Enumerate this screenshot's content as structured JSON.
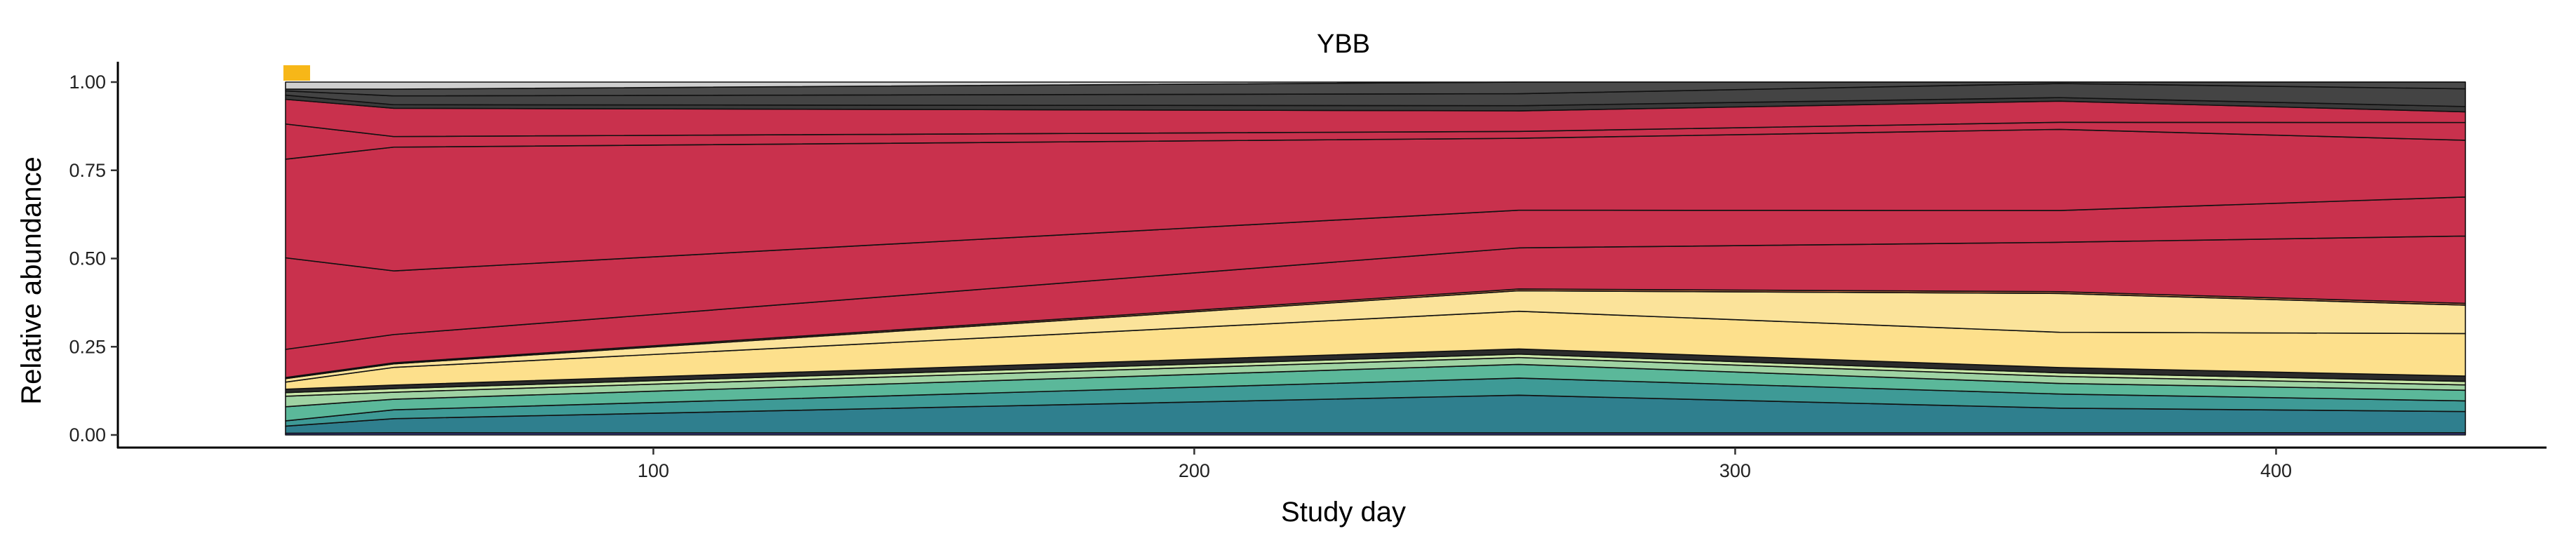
{
  "chart_data": {
    "type": "area",
    "stacked": true,
    "normalized": true,
    "title": "YBB",
    "xlabel": "Study day",
    "ylabel": "Relative abundance",
    "xlim": [
      1,
      450
    ],
    "ylim": [
      0,
      1.0
    ],
    "x_ticks": [
      100,
      200,
      300,
      400
    ],
    "y_ticks": [
      "0.00",
      "0.25",
      "0.50",
      "0.75",
      "1.00"
    ],
    "grid": false,
    "legend": "none",
    "x": [
      32,
      52,
      260,
      360,
      435
    ],
    "series": [
      {
        "color": "#3a3f8f",
        "values": [
          0.005,
          0.006,
          0.006,
          0.006,
          0.006
        ]
      },
      {
        "color": "#2f7f8e",
        "values": [
          0.02,
          0.04,
          0.11,
          0.07,
          0.06
        ]
      },
      {
        "color": "#3e9a96",
        "values": [
          0.015,
          0.025,
          0.05,
          0.04,
          0.03
        ]
      },
      {
        "color": "#5bb89a",
        "values": [
          0.04,
          0.03,
          0.04,
          0.03,
          0.03
        ]
      },
      {
        "color": "#9fd3a3",
        "values": [
          0.03,
          0.02,
          0.02,
          0.02,
          0.015
        ]
      },
      {
        "color": "#c9e7a8",
        "values": [
          0.01,
          0.01,
          0.01,
          0.01,
          0.01
        ]
      },
      {
        "color": "#2b2b2b",
        "values": [
          0.01,
          0.01,
          0.015,
          0.015,
          0.015
        ]
      },
      {
        "color": "#fde08c",
        "values": [
          0.02,
          0.05,
          0.11,
          0.1,
          0.12
        ]
      },
      {
        "color": "#fbe39a",
        "values": [
          0.01,
          0.01,
          0.06,
          0.11,
          0.08
        ]
      },
      {
        "color": "#e07b4a",
        "values": [
          0.003,
          0.003,
          0.005,
          0.005,
          0.005
        ]
      },
      {
        "color": "#c9314d",
        "values": [
          0.08,
          0.08,
          0.12,
          0.14,
          0.19
        ]
      },
      {
        "color": "#c9314d",
        "values": [
          0.26,
          0.18,
          0.11,
          0.09,
          0.11
        ]
      },
      {
        "color": "#c9314d",
        "values": [
          0.28,
          0.35,
          0.21,
          0.23,
          0.16
        ]
      },
      {
        "color": "#c9314d",
        "values": [
          0.1,
          0.03,
          0.02,
          0.02,
          0.05
        ]
      },
      {
        "color": "#c9314d",
        "values": [
          0.07,
          0.08,
          0.06,
          0.06,
          0.03
        ]
      },
      {
        "color": "#3a3a3a",
        "values": [
          0.012,
          0.01,
          0.015,
          0.01,
          0.015
        ]
      },
      {
        "color": "#444444",
        "values": [
          0.012,
          0.025,
          0.035,
          0.04,
          0.05
        ]
      },
      {
        "color": "#4a4a4a",
        "values": [
          0.005,
          0.019,
          0.034,
          0.004,
          0.019
        ]
      },
      {
        "color": "#cfcfcf",
        "values": [
          0.02,
          0.02,
          0.0,
          0.0,
          0.0
        ]
      }
    ],
    "marker": {
      "x": 32,
      "color": "#f7b718"
    }
  }
}
